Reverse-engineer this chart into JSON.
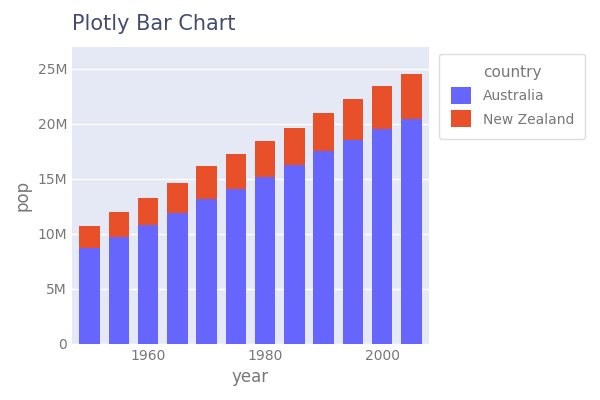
{
  "title": "Plotly Bar Chart",
  "xlabel": "year",
  "ylabel": "pop",
  "years": [
    1952,
    1957,
    1962,
    1967,
    1972,
    1977,
    1982,
    1987,
    1992,
    1997,
    2002,
    2007
  ],
  "australia_pop": [
    8691212,
    9712569,
    10794968,
    11872264,
    13177000,
    14074100,
    15184200,
    16257249,
    17481977,
    18532125,
    19546792,
    20434176
  ],
  "newzealand_pop": [
    1994794,
    2229407,
    2488550,
    2728150,
    2929100,
    3164900,
    3210650,
    3317166,
    3437498,
    3676187,
    3908037,
    4115771
  ],
  "australia_color": "#6666ff",
  "newzealand_color": "#e8502a",
  "plot_bg": "#e5e8f5",
  "fig_bg": "#ffffff",
  "title_fontsize": 15,
  "title_color": "#444c6e",
  "axis_label_fontsize": 12,
  "tick_fontsize": 10,
  "tick_color": "#777777",
  "legend_title": "country",
  "legend_labels": [
    "Australia",
    "New Zealand"
  ],
  "bar_width": 0.7,
  "ylim": [
    0,
    27000000
  ],
  "yticks": [
    0,
    5000000,
    10000000,
    15000000,
    20000000,
    25000000
  ],
  "shown_xtick_years": [
    1960,
    1980,
    2000
  ]
}
